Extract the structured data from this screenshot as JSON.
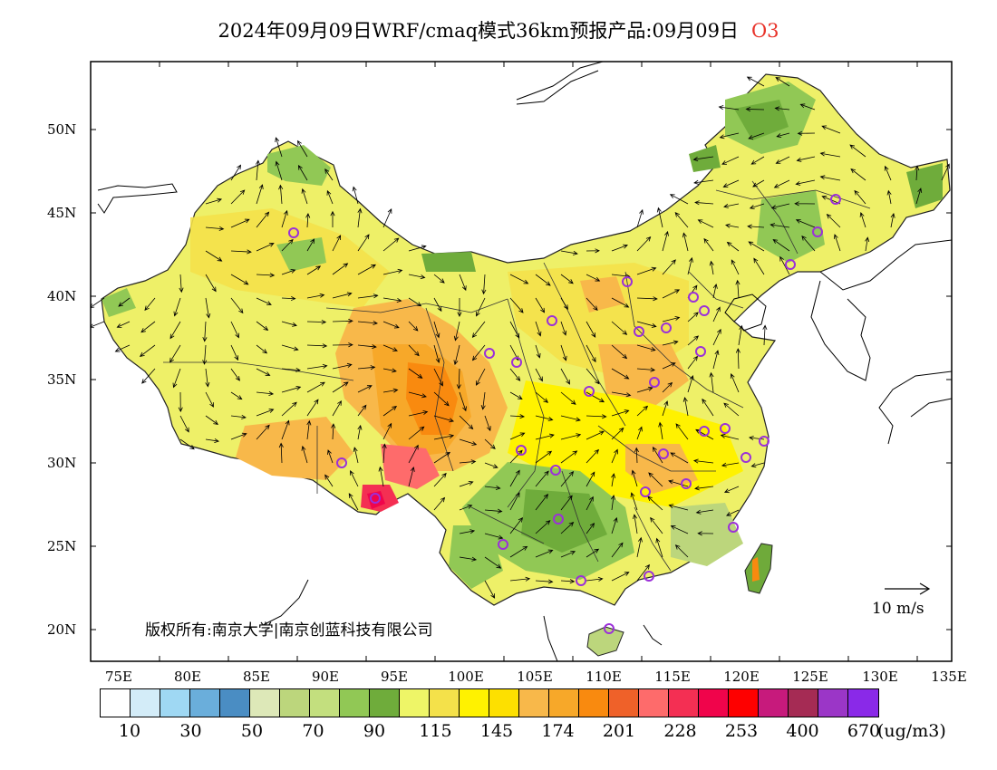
{
  "title": {
    "text": "2024年09月09日WRF/cmaq模式36km预报产品:09月09日",
    "species": "O3"
  },
  "axes": {
    "lat_labels": [
      "50N",
      "45N",
      "40N",
      "35N",
      "30N",
      "25N",
      "20N"
    ],
    "lon_labels": [
      "75E",
      "80E",
      "85E",
      "90E",
      "95E",
      "100E",
      "105E",
      "110E",
      "115E",
      "120E",
      "125E",
      "130E",
      "135E"
    ]
  },
  "copyright": "版权所有:南京大学|南京创蓝科技有限公司",
  "wind_scale": {
    "label": "10 m/s"
  },
  "colorbar": {
    "colors": [
      "#ffffff",
      "#d3ecf8",
      "#9fd8f3",
      "#6aaedb",
      "#4a8dc3",
      "#dde8b8",
      "#bcd67c",
      "#c3df7e",
      "#91c855",
      "#6fac3b",
      "#eef567",
      "#f4e14a",
      "#fff200",
      "#fde000",
      "#f8b84a",
      "#f7a829",
      "#f98a0f",
      "#ef6129",
      "#fe6b6b",
      "#f42f53",
      "#f0044b",
      "#fe0000",
      "#c71a7c",
      "#a52b54",
      "#9b36c7",
      "#8a29e8"
    ],
    "labels": [
      "10",
      "30",
      "50",
      "70",
      "90",
      "115",
      "145",
      "174",
      "201",
      "228",
      "253",
      "400",
      "670"
    ],
    "units": "(ug/m3)"
  },
  "stations": {
    "marker_color": "#9b30d9",
    "icon": "circle-station-marker"
  },
  "colors": {
    "ocean": "#ffffff",
    "border": "#000000"
  }
}
